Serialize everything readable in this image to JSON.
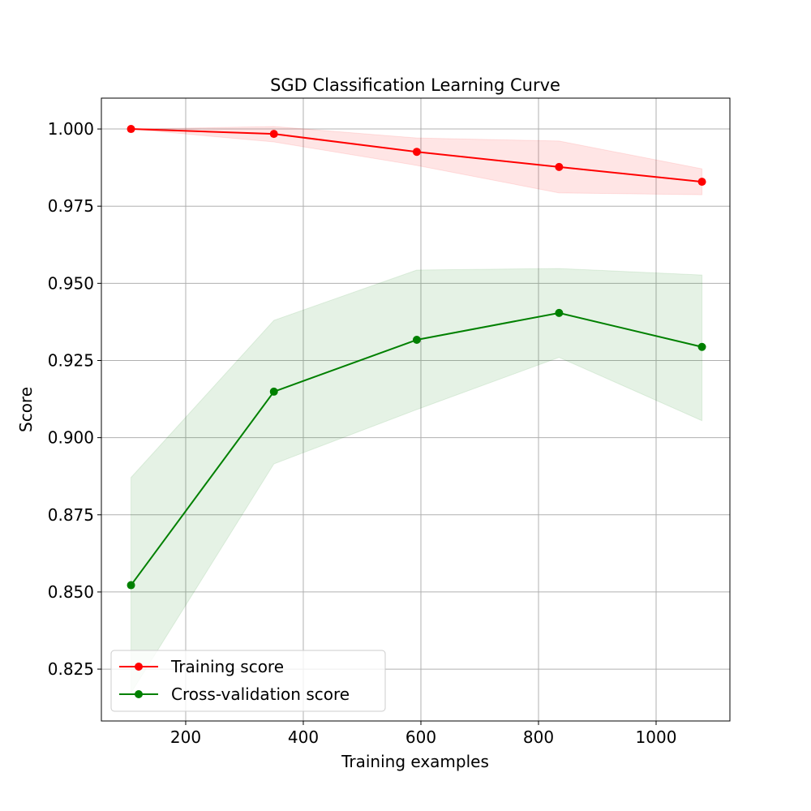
{
  "chart_data": {
    "type": "line",
    "title": "SGD Classification Learning Curve",
    "xlabel": "Training examples",
    "ylabel": "Score",
    "xlim": [
      56.6,
      1125.5
    ],
    "ylim": [
      0.8082,
      1.01
    ],
    "xticks": [
      200,
      400,
      600,
      800,
      1000
    ],
    "xtick_labels": [
      "200",
      "400",
      "600",
      "800",
      "1000"
    ],
    "yticks": [
      0.825,
      0.85,
      0.875,
      0.9,
      0.925,
      0.95,
      0.975,
      1.0
    ],
    "ytick_labels": [
      "0.825",
      "0.850",
      "0.875",
      "0.900",
      "0.925",
      "0.950",
      "0.975",
      "1.000"
    ],
    "grid": true,
    "legend_position": "lower-left",
    "x": [
      107,
      350,
      593,
      835,
      1078
    ],
    "series": [
      {
        "name": "Training score",
        "color": "#ff0000",
        "values": [
          1.0,
          0.9984,
          0.9926,
          0.9877,
          0.9829
        ],
        "band_upper": [
          1.0,
          1.0008,
          0.9971,
          0.9961,
          0.9871
        ],
        "band_lower": [
          1.0,
          0.9958,
          0.9882,
          0.9793,
          0.9787
        ]
      },
      {
        "name": "Cross-validation score",
        "color": "#008000",
        "values": [
          0.8522,
          0.9149,
          0.9317,
          0.9404,
          0.9294
        ],
        "band_upper": [
          0.8871,
          0.938,
          0.9543,
          0.9548,
          0.9527
        ],
        "band_lower": [
          0.8173,
          0.8915,
          0.9091,
          0.926,
          0.9055
        ]
      }
    ]
  }
}
